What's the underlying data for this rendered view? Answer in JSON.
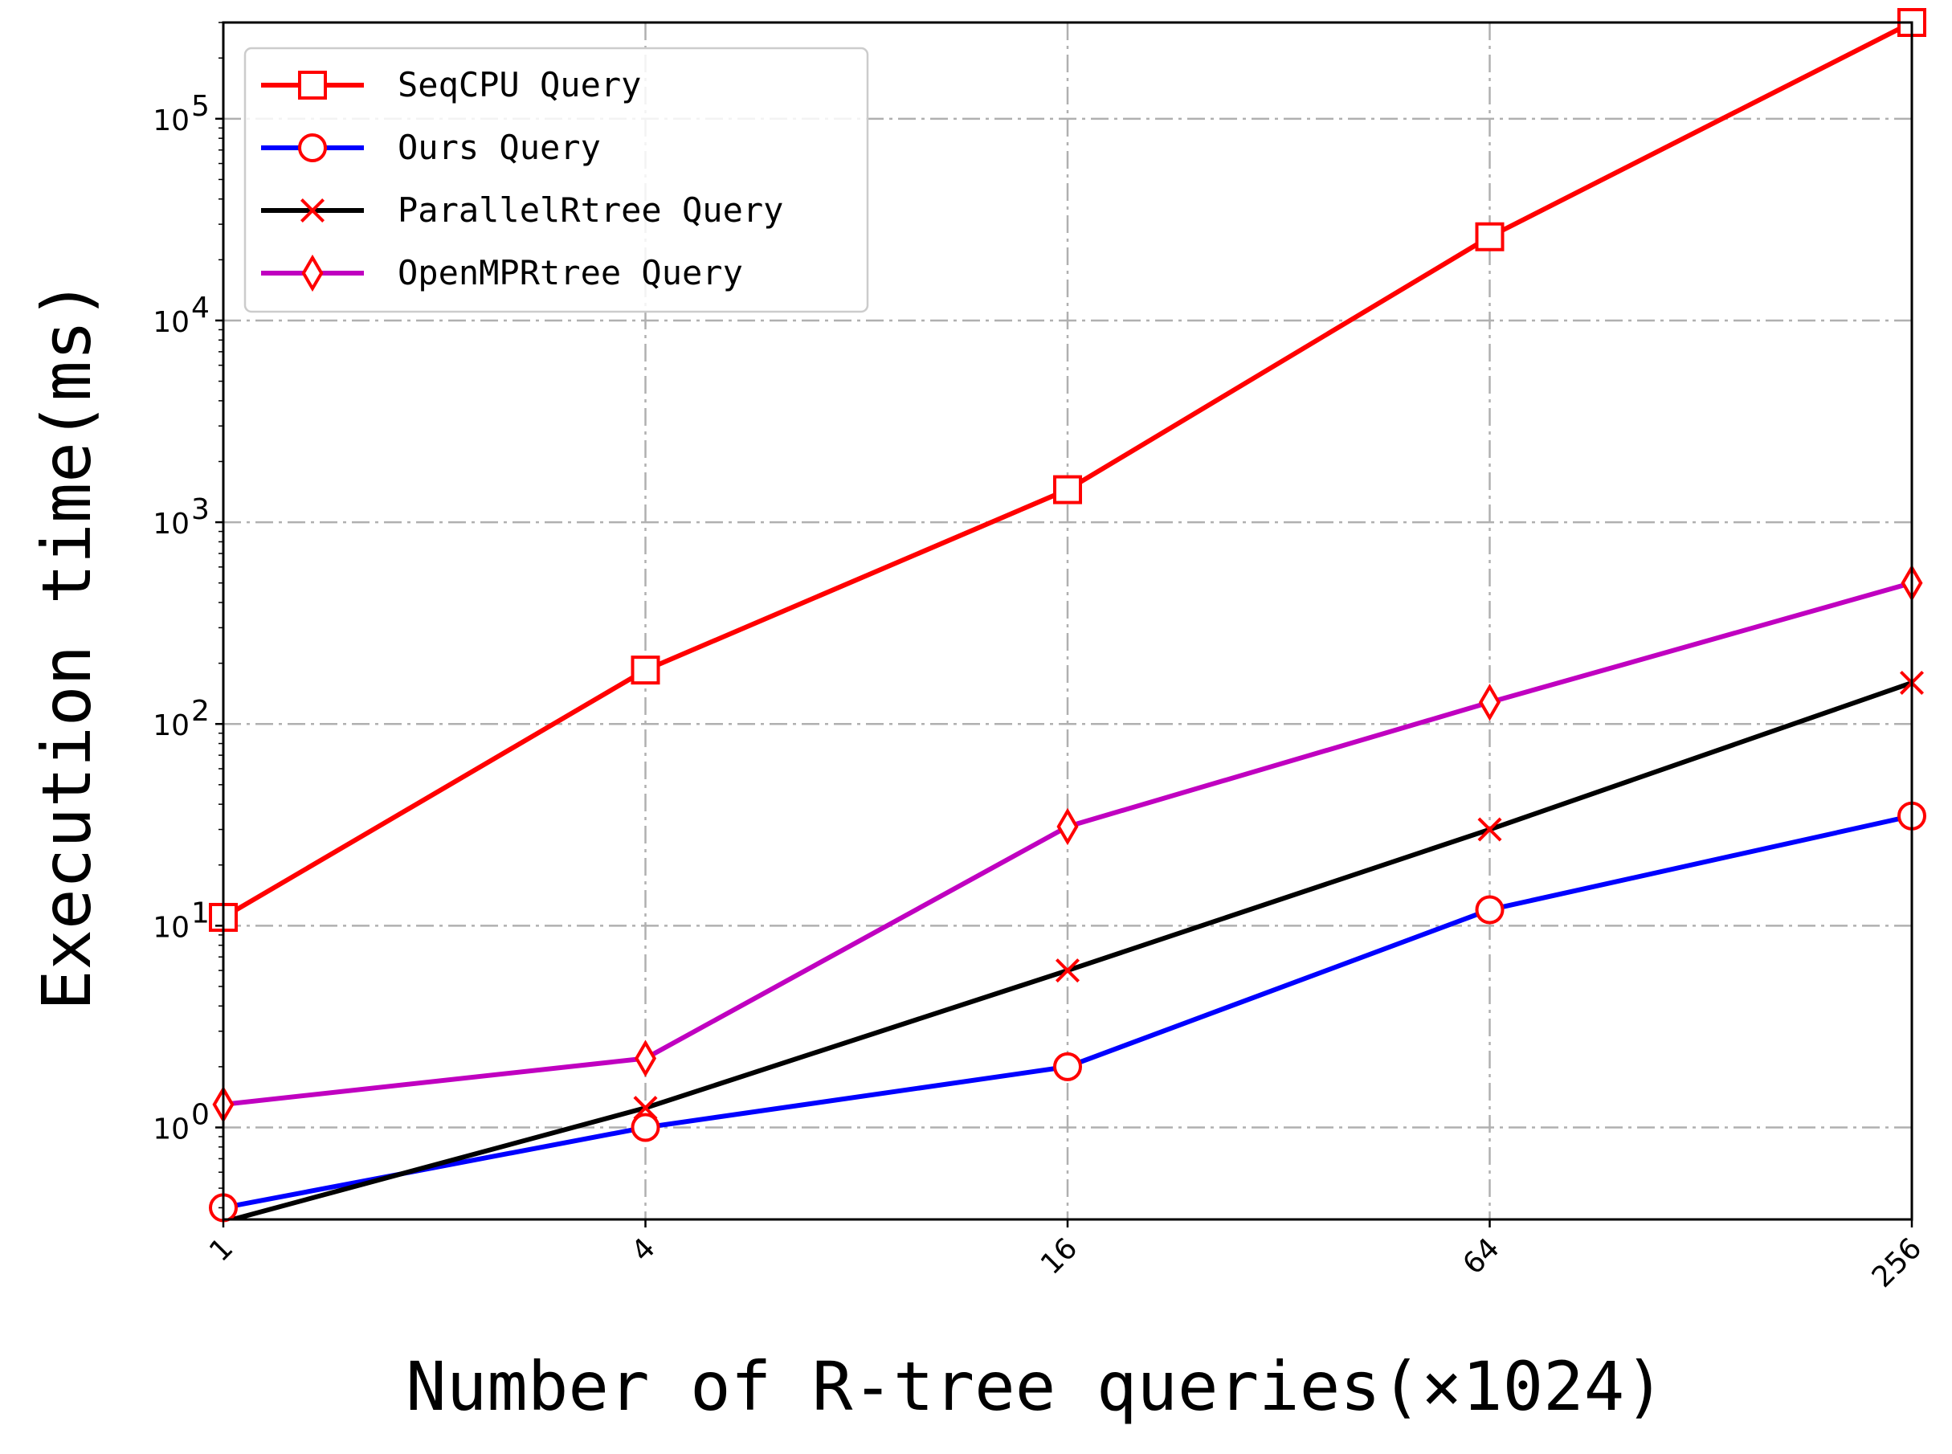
{
  "chart_data": {
    "type": "line",
    "title": "",
    "xlabel": "Number of R-tree queries(×1024)",
    "ylabel": "Execution time(ms)",
    "x_scale": "log2",
    "y_scale": "log10",
    "categories": [
      "1",
      "4",
      "16",
      "64",
      "256"
    ],
    "x": [
      1,
      4,
      16,
      64,
      256
    ],
    "xlim": [
      1,
      256
    ],
    "ylim": [
      0.35,
      300000
    ],
    "y_tick_values": [
      1,
      10,
      100,
      1000,
      10000,
      100000
    ],
    "y_ticks": [
      {
        "base": "10",
        "exp": "0"
      },
      {
        "base": "10",
        "exp": "1"
      },
      {
        "base": "10",
        "exp": "2"
      },
      {
        "base": "10",
        "exp": "3"
      },
      {
        "base": "10",
        "exp": "4"
      },
      {
        "base": "10",
        "exp": "5"
      }
    ],
    "grid": true,
    "legend_position": "upper-left",
    "series": [
      {
        "name": "SeqCPU Query",
        "values": [
          11,
          185,
          1450,
          26000,
          300000
        ],
        "color": "#ff0000",
        "marker": "square",
        "marker_color": "#ff0000"
      },
      {
        "name": "Ours Query",
        "values": [
          0.4,
          1.0,
          2.0,
          12,
          35
        ],
        "color": "#0000ff",
        "marker": "circle",
        "marker_color": "#ff0000"
      },
      {
        "name": "ParallelRtree Query",
        "values": [
          0.34,
          1.25,
          6.0,
          30,
          160
        ],
        "color": "#000000",
        "marker": "x",
        "marker_color": "#ff0000"
      },
      {
        "name": "OpenMPRtree Query",
        "values": [
          1.3,
          2.2,
          31,
          128,
          500
        ],
        "color": "#c000c0",
        "marker": "diamond",
        "marker_color": "#ff0000"
      }
    ]
  }
}
